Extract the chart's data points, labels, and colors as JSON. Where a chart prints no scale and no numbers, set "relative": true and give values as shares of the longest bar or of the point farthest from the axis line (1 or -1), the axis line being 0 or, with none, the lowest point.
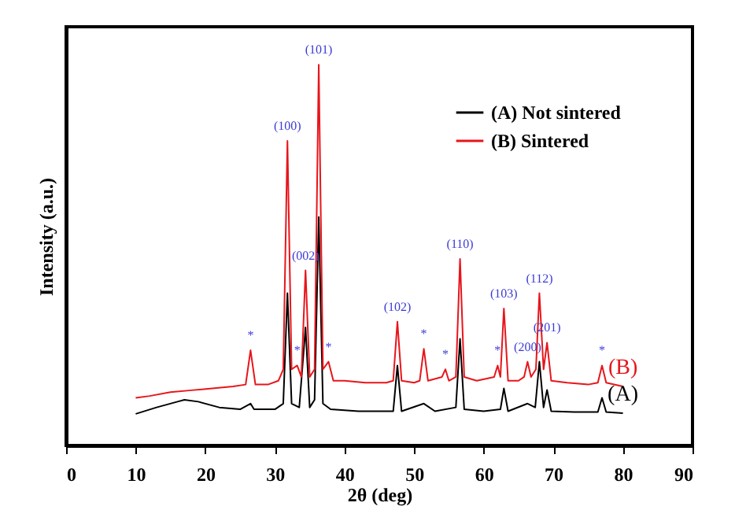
{
  "chart_data": {
    "type": "line",
    "relative": true,
    "xlabel": "2θ (deg)",
    "ylabel": "Intensity (a.u.)",
    "xlim": [
      0,
      90
    ],
    "xticks": [
      0,
      10,
      20,
      30,
      40,
      50,
      60,
      70,
      80,
      90
    ],
    "legend": "top right",
    "grid": false,
    "marker": "none",
    "line_style": "solid",
    "series": [
      {
        "name": "(A) Not sintered",
        "color": "#000000",
        "x": [
          10,
          13,
          16,
          17,
          19,
          22,
          25,
          26.5,
          27,
          30,
          31.2,
          31.8,
          32.4,
          33.5,
          34.4,
          35,
          35.7,
          36.3,
          36.9,
          38,
          42,
          47,
          47.6,
          48.2,
          51.4,
          53,
          56,
          56.6,
          57.2,
          60,
          62.4,
          62.9,
          63.5,
          66.3,
          67.4,
          68,
          68.6,
          69.1,
          69.7,
          73,
          76.4,
          77,
          77.6,
          80
        ],
        "values": [
          0.083,
          0.1,
          0.115,
          0.12,
          0.115,
          0.1,
          0.095,
          0.11,
          0.095,
          0.095,
          0.11,
          0.4,
          0.11,
          0.1,
          0.31,
          0.1,
          0.12,
          0.6,
          0.11,
          0.095,
          0.09,
          0.09,
          0.21,
          0.09,
          0.11,
          0.09,
          0.1,
          0.28,
          0.095,
          0.09,
          0.095,
          0.15,
          0.09,
          0.11,
          0.1,
          0.22,
          0.1,
          0.146,
          0.09,
          0.088,
          0.088,
          0.125,
          0.088,
          0.085
        ]
      },
      {
        "name": "(B) Sintered",
        "color": "#e8151b",
        "x": [
          10,
          12,
          15,
          18,
          21,
          24,
          25.8,
          26.5,
          27.2,
          29,
          30.5,
          31.2,
          31.8,
          32.4,
          33.2,
          33.8,
          34.4,
          35,
          35.7,
          36.3,
          36.9,
          37.7,
          38.4,
          40,
          43,
          46,
          47,
          47.6,
          48.2,
          50,
          50.8,
          51.4,
          52,
          54,
          54.5,
          55,
          56,
          56.6,
          57.2,
          59,
          61.5,
          62,
          62.4,
          62.9,
          63.5,
          65,
          65.8,
          66.3,
          66.8,
          67.5,
          68,
          68.6,
          69.1,
          69.7,
          72,
          75,
          76.4,
          77,
          77.6,
          80
        ],
        "values": [
          0.125,
          0.13,
          0.14,
          0.145,
          0.15,
          0.155,
          0.16,
          0.25,
          0.16,
          0.16,
          0.17,
          0.2,
          0.8,
          0.2,
          0.21,
          0.18,
          0.46,
          0.18,
          0.2,
          1,
          0.2,
          0.22,
          0.17,
          0.17,
          0.165,
          0.165,
          0.17,
          0.325,
          0.17,
          0.165,
          0.17,
          0.254,
          0.17,
          0.18,
          0.2,
          0.17,
          0.18,
          0.49,
          0.18,
          0.17,
          0.18,
          0.21,
          0.18,
          0.36,
          0.17,
          0.17,
          0.18,
          0.22,
          0.18,
          0.2,
          0.4,
          0.2,
          0.27,
          0.17,
          0.165,
          0.16,
          0.165,
          0.21,
          0.165,
          0.155
        ]
      }
    ],
    "annotations": [
      {
        "text": "(100)",
        "x": 31.8,
        "y": 0.8
      },
      {
        "text": "(101)",
        "x": 36.3,
        "y": 1
      },
      {
        "text": "(002)",
        "x": 34.4,
        "y": 0.46
      },
      {
        "text": "(102)",
        "x": 47.6,
        "y": 0.325
      },
      {
        "text": "(110)",
        "x": 56.6,
        "y": 0.49
      },
      {
        "text": "(103)",
        "x": 62.9,
        "y": 0.36
      },
      {
        "text": "(200)",
        "x": 66.3,
        "y": 0.22
      },
      {
        "text": "(112)",
        "x": 68,
        "y": 0.4
      },
      {
        "text": "(201)",
        "x": 69.1,
        "y": 0.27
      },
      {
        "text": "*",
        "x": 26.5,
        "y": 0.25
      },
      {
        "text": "*",
        "x": 33.2,
        "y": 0.21
      },
      {
        "text": "*",
        "x": 37.7,
        "y": 0.22
      },
      {
        "text": "*",
        "x": 51.4,
        "y": 0.254
      },
      {
        "text": "*",
        "x": 54.5,
        "y": 0.2
      },
      {
        "text": "*",
        "x": 62,
        "y": 0.21
      },
      {
        "text": "*",
        "x": 77,
        "y": 0.21
      },
      "(B)",
      "(A)"
    ]
  }
}
